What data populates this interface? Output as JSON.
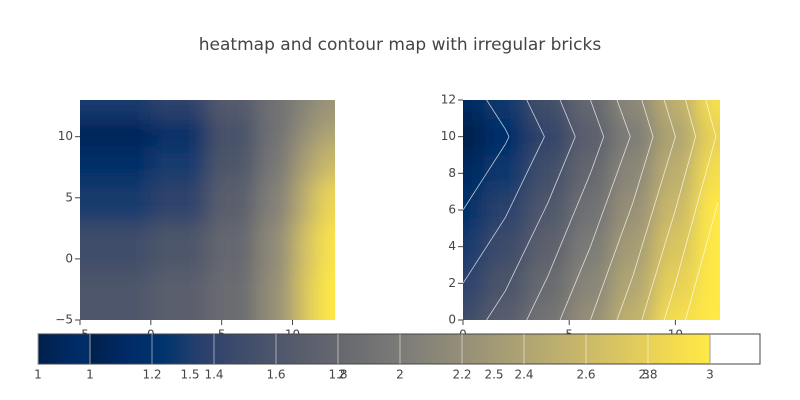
{
  "title": "heatmap and contour map with irregular bricks",
  "colorscale": [
    "#00204c",
    "#002a66",
    "#00346e",
    "#273f6c",
    "#3c4a6b",
    "#4c556b",
    "#5b5f6d",
    "#686a70",
    "#757575",
    "#838178",
    "#928c78",
    "#a19876",
    "#b0a572",
    "#c0b16d",
    "#d1bf66",
    "#e1cc5c",
    "#f3db4f",
    "#ffe945"
  ],
  "chart_data": [
    {
      "type": "heatmap",
      "x": [
        -2,
        2,
        6,
        9,
        11,
        12.5
      ],
      "y": [
        -3,
        1,
        5,
        8,
        10.5,
        12.3
      ],
      "z": [
        [
          1.6,
          1.7,
          1.85,
          2.2,
          2.7,
          3.0
        ],
        [
          1.5,
          1.6,
          1.8,
          2.15,
          2.65,
          2.95
        ],
        [
          1.3,
          1.4,
          1.7,
          2.05,
          2.5,
          2.85
        ],
        [
          1.15,
          1.3,
          1.6,
          1.95,
          2.35,
          2.6
        ],
        [
          1.05,
          1.15,
          1.55,
          1.9,
          2.2,
          2.4
        ],
        [
          1.3,
          1.4,
          1.65,
          1.9,
          2.1,
          2.25
        ]
      ],
      "xlim": [
        -5,
        13
      ],
      "ylim": [
        -5,
        13
      ],
      "xticks": [
        {
          "value": -5,
          "label": "−5"
        },
        0,
        5,
        10
      ],
      "yticks": [
        {
          "value": -5,
          "label": "−5"
        },
        0,
        5,
        10
      ],
      "zlim": [
        1,
        3
      ],
      "colorbar_ticks": [
        1,
        1.5,
        2,
        2.5,
        3
      ]
    },
    {
      "type": "contour",
      "x": [
        0,
        2,
        4,
        6,
        8,
        10,
        12
      ],
      "y": [
        0,
        2,
        4,
        6,
        8,
        10,
        12
      ],
      "z": [
        [
          1.5,
          1.68,
          1.92,
          2.2,
          2.52,
          2.9,
          3.32
        ],
        [
          1.4,
          1.58,
          1.82,
          2.1,
          2.42,
          2.8,
          3.22
        ],
        [
          1.3,
          1.48,
          1.72,
          2,
          2.32,
          2.7,
          3.12
        ],
        [
          1.2,
          1.38,
          1.62,
          1.9,
          2.22,
          2.6,
          3.02
        ],
        [
          1.1,
          1.28,
          1.52,
          1.8,
          2.12,
          2.5,
          2.92
        ],
        [
          1,
          1.18,
          1.42,
          1.7,
          2.02,
          2.4,
          2.82
        ],
        [
          1.1,
          1.28,
          1.52,
          1.8,
          2.12,
          2.5,
          2.92
        ]
      ],
      "xlim": [
        0,
        12.1
      ],
      "ylim": [
        0,
        12
      ],
      "xticks": [
        0,
        5,
        10
      ],
      "yticks": [
        0,
        2,
        4,
        6,
        8,
        10,
        12
      ],
      "zlim": [
        1,
        3
      ],
      "contours": {
        "start": 1.2,
        "end": 3,
        "size": 0.2
      },
      "colorbar_ticks": [
        1,
        1.2,
        1.4,
        1.6,
        1.8,
        2,
        2.2,
        2.4,
        2.6,
        2.8,
        3
      ]
    }
  ]
}
